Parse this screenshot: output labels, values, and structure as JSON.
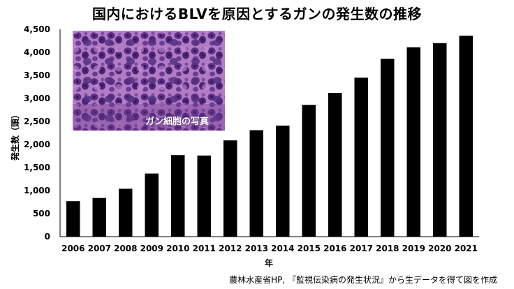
{
  "title": "国内におけるBLVを原因とするガンの発生数の推移",
  "source": "農林水産省HP, 『監視伝染病の発生状況』から生データを得て図を作成",
  "photo": {
    "caption": "ガン細胞の写真"
  },
  "chart_data": {
    "type": "bar",
    "categories": [
      "2006",
      "2007",
      "2008",
      "2009",
      "2010",
      "2011",
      "2012",
      "2013",
      "2014",
      "2015",
      "2016",
      "2017",
      "2018",
      "2019",
      "2020",
      "2021"
    ],
    "values": [
      770,
      840,
      1040,
      1370,
      1770,
      1760,
      2090,
      2310,
      2410,
      2860,
      3120,
      3450,
      3860,
      4110,
      4200,
      4360
    ],
    "xlabel": "年",
    "ylabel": "発生数（頭）",
    "ylim": [
      0,
      4500
    ],
    "yticks": [
      "0",
      "500",
      "1,000",
      "1,500",
      "2,000",
      "2,500",
      "3,000",
      "3,500",
      "4,000",
      "4,500"
    ],
    "bar_color": "#000000",
    "grid": false
  }
}
